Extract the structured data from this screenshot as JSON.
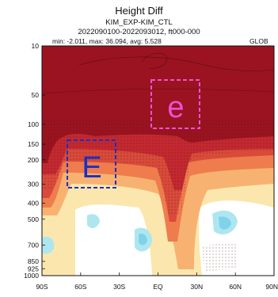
{
  "chart_data": {
    "type": "heatmap",
    "title": "Height Diff",
    "subtitle1": "KIM_EXP-KIM_CTL",
    "subtitle2": "2022090100-2022093012, ft000-000",
    "stats": "min: -2.011, max: 36.094, avg: 5.528",
    "region": "GLOB",
    "y_ticks": [
      "10",
      "50",
      "100",
      "150",
      "200",
      "300",
      "400",
      "500",
      "700",
      "850",
      "925",
      "1000"
    ],
    "x_ticks": [
      "90S",
      "60S",
      "30S",
      "EQ",
      "30N",
      "60N",
      "90N"
    ],
    "y_values": [
      10,
      50,
      100,
      150,
      200,
      300,
      400,
      500,
      700,
      850,
      925,
      1000
    ],
    "x_values": [
      -90,
      -60,
      -30,
      0,
      30,
      60,
      90
    ],
    "annotations": [
      {
        "label": "E",
        "color": "#1a2fc4"
      },
      {
        "label": "e",
        "color": "#ee4fd6"
      }
    ]
  }
}
